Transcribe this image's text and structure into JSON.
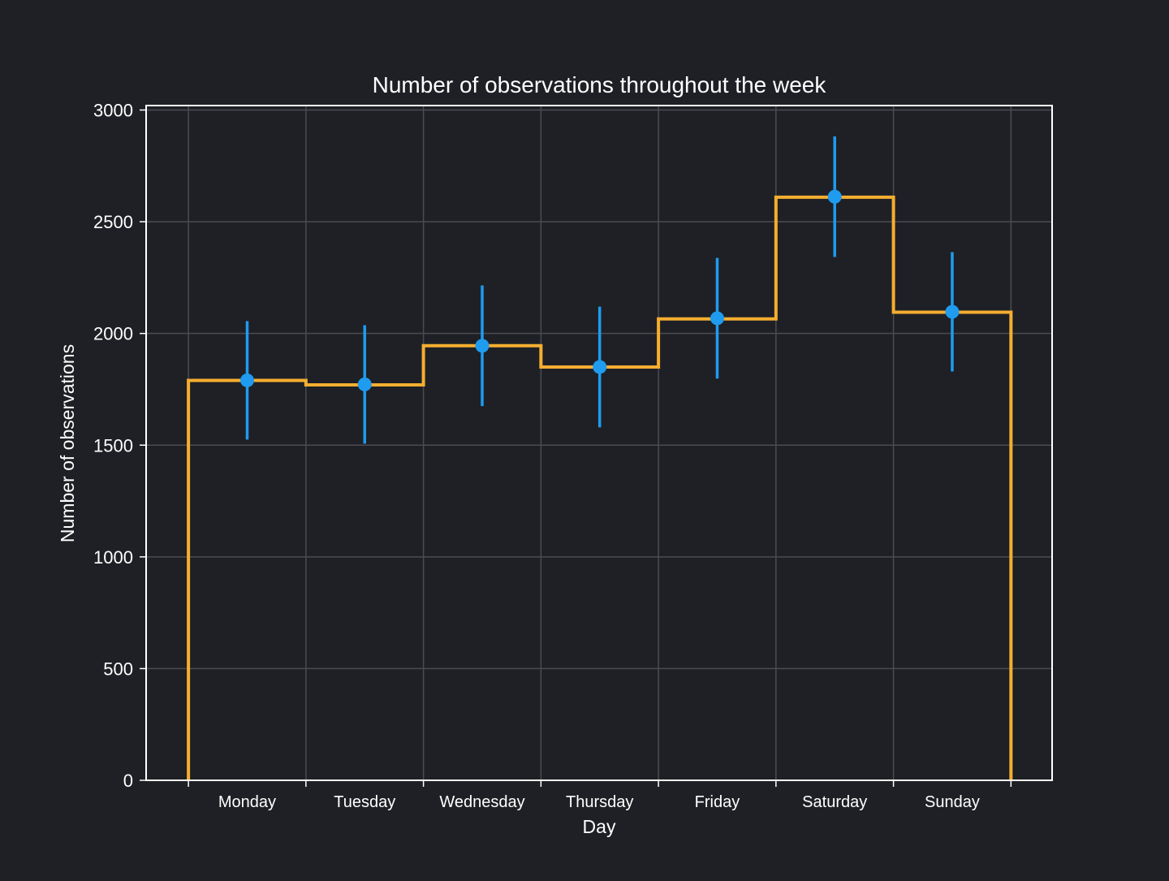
{
  "colors": {
    "background": "#1e2025",
    "grid": "#4a4c52",
    "axes": "#ffffff",
    "step_line": "#f5ae30",
    "points": "#1f9bef",
    "text": "#ffffff"
  },
  "chart_data": {
    "type": "line",
    "title": "Number of observations throughout the week",
    "xlabel": "Day",
    "ylabel": "Number of observations",
    "categories": [
      "Monday",
      "Tuesday",
      "Wednesday",
      "Thursday",
      "Friday",
      "Saturday",
      "Sunday"
    ],
    "yticks": [
      0,
      500,
      1000,
      1500,
      2000,
      2500,
      3000
    ],
    "ylim": [
      0,
      3020
    ],
    "xlim": [
      -0.36,
      7.35
    ],
    "grid": true,
    "series": [
      {
        "style": "step-histogram",
        "color": "#f5ae30",
        "values": [
          1790,
          1770,
          1945,
          1850,
          2065,
          2610,
          2095
        ]
      },
      {
        "style": "errorbar-points",
        "color": "#1f9bef",
        "values": [
          1790,
          1772,
          1945,
          1850,
          2068,
          2612,
          2097
        ],
        "error": [
          265,
          265,
          270,
          270,
          270,
          270,
          267
        ]
      }
    ]
  }
}
